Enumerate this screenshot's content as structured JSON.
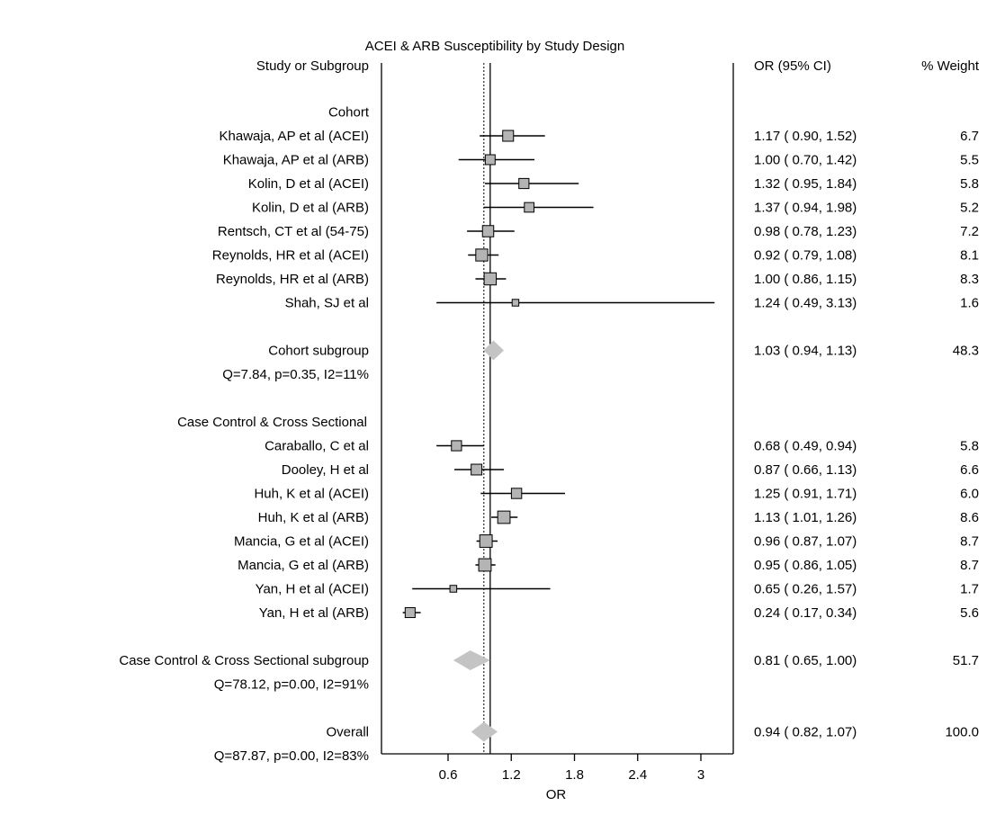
{
  "chart_data": {
    "type": "forest",
    "title": "ACEI & ARB Susceptibility by Study Design",
    "xlabel": "OR",
    "xlim": [
      0.0,
      3.4
    ],
    "xticks": [
      "0.6",
      "1.2",
      "1.8",
      "2.4",
      "3"
    ],
    "xtick_values": [
      0.6,
      1.2,
      1.8,
      2.4,
      3.0
    ],
    "null_line": 1.0,
    "overall_line": 0.94,
    "headers": {
      "study": "Study or Subgroup",
      "ci": "OR (95% CI)",
      "weight": "% Weight"
    },
    "rows": [
      {
        "kind": "group",
        "label": "Cohort"
      },
      {
        "kind": "study",
        "label": "Khawaja, AP et al (ACEI)",
        "or": 1.17,
        "lo": 0.9,
        "hi": 1.52,
        "ci_text": "1.17  (  0.90,  1.52)",
        "weight": "6.7",
        "w": 6.7
      },
      {
        "kind": "study",
        "label": "Khawaja, AP et al (ARB)",
        "or": 1.0,
        "lo": 0.7,
        "hi": 1.42,
        "ci_text": "1.00  (  0.70,  1.42)",
        "weight": "5.5",
        "w": 5.5
      },
      {
        "kind": "study",
        "label": "Kolin, D et al (ACEI)",
        "or": 1.32,
        "lo": 0.95,
        "hi": 1.84,
        "ci_text": "1.32  (  0.95,  1.84)",
        "weight": "5.8",
        "w": 5.8
      },
      {
        "kind": "study",
        "label": "Kolin, D et al (ARB)",
        "or": 1.37,
        "lo": 0.94,
        "hi": 1.98,
        "ci_text": "1.37  (  0.94,  1.98)",
        "weight": "5.2",
        "w": 5.2
      },
      {
        "kind": "study",
        "label": "Rentsch, CT et al (54-75)",
        "or": 0.98,
        "lo": 0.78,
        "hi": 1.23,
        "ci_text": "0.98  (  0.78,  1.23)",
        "weight": "7.2",
        "w": 7.2
      },
      {
        "kind": "study",
        "label": "Reynolds, HR et al (ACEI)",
        "or": 0.92,
        "lo": 0.79,
        "hi": 1.08,
        "ci_text": "0.92  (  0.79,  1.08)",
        "weight": "8.1",
        "w": 8.1
      },
      {
        "kind": "study",
        "label": "Reynolds, HR et al (ARB)",
        "or": 1.0,
        "lo": 0.86,
        "hi": 1.15,
        "ci_text": "1.00  (  0.86,  1.15)",
        "weight": "8.3",
        "w": 8.3
      },
      {
        "kind": "study",
        "label": "Shah, SJ et al",
        "or": 1.24,
        "lo": 0.49,
        "hi": 3.13,
        "ci_text": "1.24  (  0.49,  3.13)",
        "weight": "1.6",
        "w": 1.6
      },
      {
        "kind": "blank"
      },
      {
        "kind": "subgroup",
        "label": "Cohort subgroup",
        "or": 1.03,
        "lo": 0.94,
        "hi": 1.13,
        "ci_text": "1.03  (  0.94,  1.13)",
        "weight": "48.3"
      },
      {
        "kind": "stat",
        "label": "Q=7.84, p=0.35, I2=11%"
      },
      {
        "kind": "blank"
      },
      {
        "kind": "group",
        "label": "Case Control & Cross Sectional"
      },
      {
        "kind": "study",
        "label": "Caraballo, C et al",
        "or": 0.68,
        "lo": 0.49,
        "hi": 0.94,
        "ci_text": "0.68  (  0.49,  0.94)",
        "weight": "5.8",
        "w": 5.8
      },
      {
        "kind": "study",
        "label": "Dooley, H et al",
        "or": 0.87,
        "lo": 0.66,
        "hi": 1.13,
        "ci_text": "0.87  (  0.66,  1.13)",
        "weight": "6.6",
        "w": 6.6
      },
      {
        "kind": "study",
        "label": "Huh, K et al (ACEI)",
        "or": 1.25,
        "lo": 0.91,
        "hi": 1.71,
        "ci_text": "1.25  (  0.91,  1.71)",
        "weight": "6.0",
        "w": 6.0
      },
      {
        "kind": "study",
        "label": "Huh, K et al (ARB)",
        "or": 1.13,
        "lo": 1.01,
        "hi": 1.26,
        "ci_text": "1.13  (  1.01,  1.26)",
        "weight": "8.6",
        "w": 8.6
      },
      {
        "kind": "study",
        "label": "Mancia, G et al (ACEI)",
        "or": 0.96,
        "lo": 0.87,
        "hi": 1.07,
        "ci_text": "0.96  (  0.87,  1.07)",
        "weight": "8.7",
        "w": 8.7
      },
      {
        "kind": "study",
        "label": "Mancia, G et al (ARB)",
        "or": 0.95,
        "lo": 0.86,
        "hi": 1.05,
        "ci_text": "0.95  (  0.86,  1.05)",
        "weight": "8.7",
        "w": 8.7
      },
      {
        "kind": "study",
        "label": "Yan, H et al (ACEI)",
        "or": 0.65,
        "lo": 0.26,
        "hi": 1.57,
        "ci_text": "0.65  (  0.26,  1.57)",
        "weight": "1.7",
        "w": 1.7
      },
      {
        "kind": "study",
        "label": "Yan, H et al (ARB)",
        "or": 0.24,
        "lo": 0.17,
        "hi": 0.34,
        "ci_text": "0.24  (  0.17,  0.34)",
        "weight": "5.6",
        "w": 5.6
      },
      {
        "kind": "blank"
      },
      {
        "kind": "subgroup",
        "label": "Case Control & Cross Sectional subgroup",
        "or": 0.81,
        "lo": 0.65,
        "hi": 1.0,
        "ci_text": "0.81  (  0.65,  1.00)",
        "weight": "51.7"
      },
      {
        "kind": "stat",
        "label": "Q=78.12, p=0.00, I2=91%"
      },
      {
        "kind": "blank"
      },
      {
        "kind": "subgroup",
        "label": "Overall",
        "or": 0.94,
        "lo": 0.82,
        "hi": 1.07,
        "ci_text": "0.94  (  0.82,  1.07)",
        "weight": "100.0"
      },
      {
        "kind": "stat",
        "label": "Q=87.87, p=0.00, I2=83%"
      }
    ]
  },
  "colors": {
    "text": "#000000",
    "box_fill": "#b4b4b4",
    "diamond_fill": "#c4c4c4",
    "axis": "#000000"
  }
}
